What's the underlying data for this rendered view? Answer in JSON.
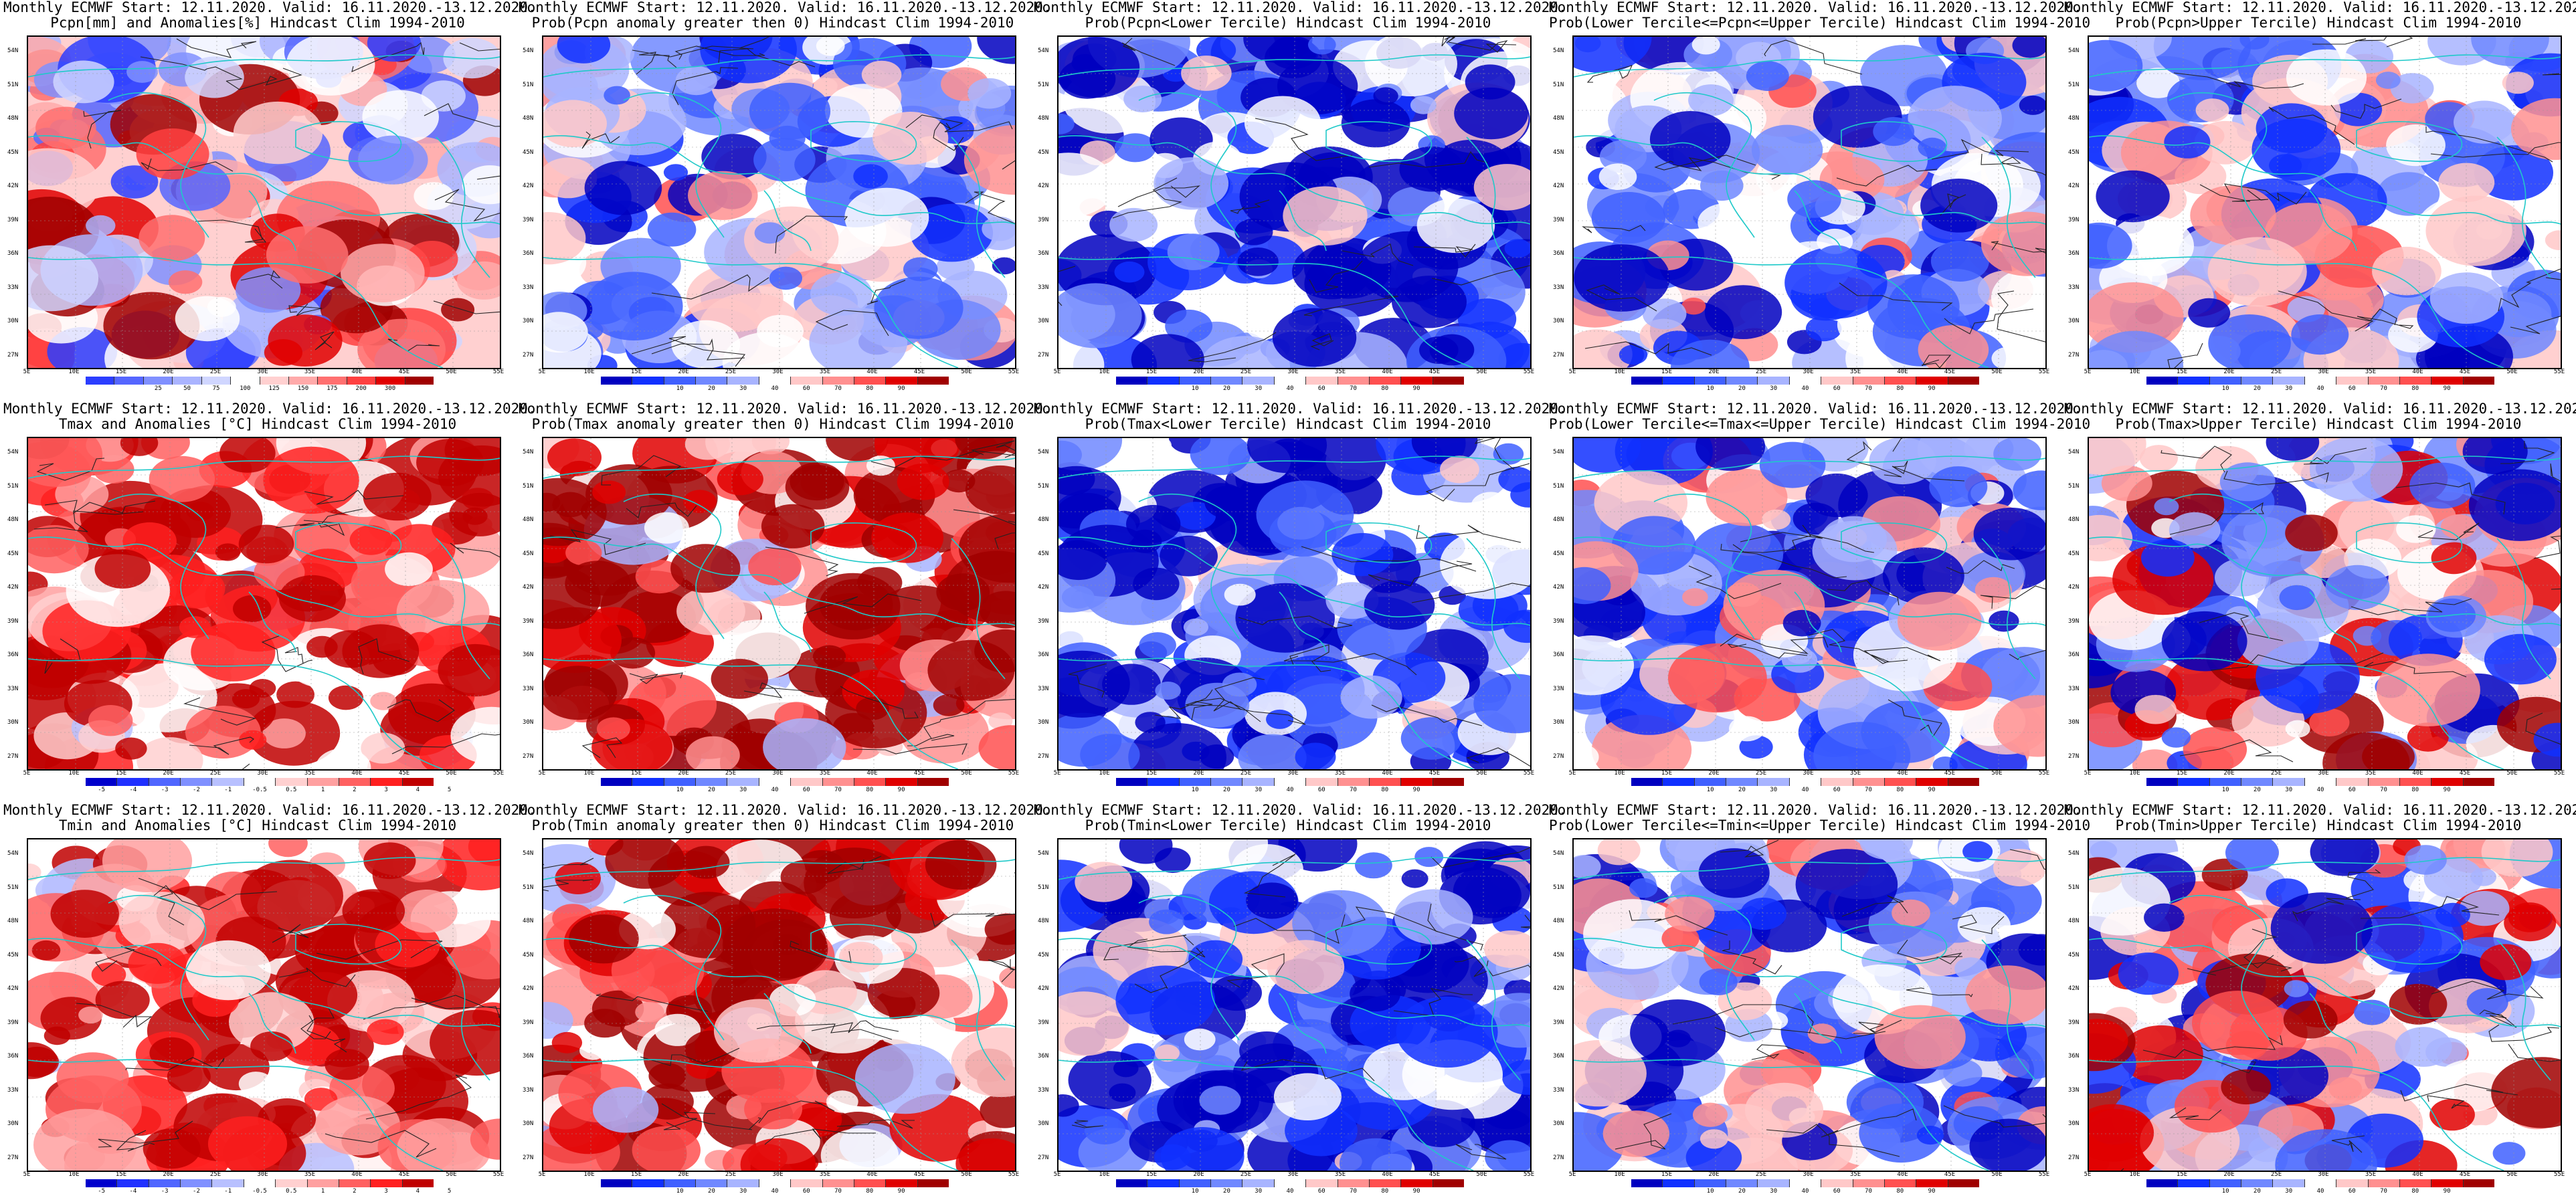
{
  "lat_labels": [
    "54N",
    "51N",
    "48N",
    "45N",
    "42N",
    "39N",
    "36N",
    "33N",
    "30N",
    "27N"
  ],
  "lon_labels": [
    "5E",
    "10E",
    "15E",
    "20E",
    "25E",
    "30E",
    "35E",
    "40E",
    "45E",
    "50E",
    "55E"
  ],
  "palettes": {
    "precip_anom": [
      "#2b3dff",
      "#5566ff",
      "#8090ff",
      "#aab4ff",
      "#d0d6ff",
      "#ffffff",
      "#ffd0d0",
      "#ffaaaa",
      "#ff7070",
      "#ff4040",
      "#e00000",
      "#a00000"
    ],
    "temp_anom": [
      "#0000cc",
      "#2030ff",
      "#5066ff",
      "#8090ff",
      "#b8c0ff",
      "#ffffff",
      "#ffd0d0",
      "#ffa0a0",
      "#ff6060",
      "#ff2020",
      "#c00000"
    ],
    "prob": [
      "#0000c0",
      "#1030ff",
      "#4060ff",
      "#7088ff",
      "#a8b4ff",
      "#ffffff",
      "#ffc8c8",
      "#ff9090",
      "#ff5050",
      "#e00000",
      "#a00000"
    ]
  },
  "panels": [
    {
      "title_line1": "Monthly ECMWF Start: 12.11.2020. Valid: 16.11.2020.-13.12.2020.",
      "title_line2": "Pcpn[mm] and Anomalies[%] Hindcast Clim 1994-2010",
      "field": "precip-anomaly",
      "palette": "precip_anom",
      "colorbar_labels": [
        "25",
        "50",
        "75",
        "100",
        "125",
        "150",
        "175",
        "200",
        "300"
      ]
    },
    {
      "title_line1": "Monthly ECMWF Start: 12.11.2020. Valid: 16.11.2020.-13.12.2020.",
      "title_line2": "Prob(Pcpn anomaly greater then 0) Hindcast Clim 1994-2010",
      "field": "precip-prob-positive",
      "palette": "prob",
      "colorbar_labels": [
        "10",
        "20",
        "30",
        "40",
        "60",
        "70",
        "80",
        "90"
      ]
    },
    {
      "title_line1": "Monthly ECMWF Start: 12.11.2020. Valid: 16.11.2020.-13.12.2020.",
      "title_line2": "Prob(Pcpn<Lower Tercile) Hindcast Clim 1994-2010",
      "field": "precip-prob-lower",
      "palette": "prob",
      "colorbar_labels": [
        "10",
        "20",
        "30",
        "40",
        "60",
        "70",
        "80",
        "90"
      ]
    },
    {
      "title_line1": "Monthly ECMWF Start: 12.11.2020. Valid: 16.11.2020.-13.12.2020.",
      "title_line2": "Prob(Lower Tercile<=Pcpn<=Upper Tercile) Hindcast Clim 1994-2010",
      "field": "precip-prob-middle",
      "palette": "prob",
      "colorbar_labels": [
        "10",
        "20",
        "30",
        "40",
        "60",
        "70",
        "80",
        "90"
      ]
    },
    {
      "title_line1": "Monthly ECMWF Start: 12.11.2020. Valid: 16.11.2020.-13.12.2020.",
      "title_line2": "Prob(Pcpn>Upper Tercile) Hindcast Clim 1994-2010",
      "field": "precip-prob-upper",
      "palette": "prob",
      "colorbar_labels": [
        "10",
        "20",
        "30",
        "40",
        "60",
        "70",
        "80",
        "90"
      ]
    },
    {
      "title_line1": "Monthly ECMWF Start: 12.11.2020. Valid: 16.11.2020.-13.12.2020.",
      "title_line2": "Tmax and Anomalies [°C] Hindcast Clim 1994-2010",
      "field": "tmax-anomaly",
      "palette": "temp_anom",
      "colorbar_labels": [
        "-5",
        "-4",
        "-3",
        "-2",
        "-1",
        "-0.5",
        "0.5",
        "1",
        "2",
        "3",
        "4",
        "5"
      ]
    },
    {
      "title_line1": "Monthly ECMWF Start: 12.11.2020. Valid: 16.11.2020.-13.12.2020.",
      "title_line2": "Prob(Tmax anomaly greater then 0) Hindcast Clim 1994-2010",
      "field": "tmax-prob-positive",
      "palette": "prob",
      "colorbar_labels": [
        "10",
        "20",
        "30",
        "40",
        "60",
        "70",
        "80",
        "90"
      ]
    },
    {
      "title_line1": "Monthly ECMWF Start: 12.11.2020. Valid: 16.11.2020.-13.12.2020.",
      "title_line2": "Prob(Tmax<Lower Tercile) Hindcast Clim 1994-2010",
      "field": "tmax-prob-lower",
      "palette": "prob",
      "colorbar_labels": [
        "10",
        "20",
        "30",
        "40",
        "60",
        "70",
        "80",
        "90"
      ]
    },
    {
      "title_line1": "Monthly ECMWF Start: 12.11.2020. Valid: 16.11.2020.-13.12.2020.",
      "title_line2": "Prob(Lower Tercile<=Tmax<=Upper Tercile) Hindcast Clim 1994-2010",
      "field": "tmax-prob-middle",
      "palette": "prob",
      "colorbar_labels": [
        "10",
        "20",
        "30",
        "40",
        "60",
        "70",
        "80",
        "90"
      ]
    },
    {
      "title_line1": "Monthly ECMWF Start: 12.11.2020. Valid: 16.11.2020.-13.12.2020.",
      "title_line2": "Prob(Tmax>Upper Tercile) Hindcast Clim 1994-2010",
      "field": "tmax-prob-upper",
      "palette": "prob",
      "colorbar_labels": [
        "10",
        "20",
        "30",
        "40",
        "60",
        "70",
        "80",
        "90"
      ]
    },
    {
      "title_line1": "Monthly ECMWF Start: 12.11.2020. Valid: 16.11.2020.-13.12.2020.",
      "title_line2": "Tmin and Anomalies [°C] Hindcast Clim 1994-2010",
      "field": "tmin-anomaly",
      "palette": "temp_anom",
      "colorbar_labels": [
        "-5",
        "-4",
        "-3",
        "-2",
        "-1",
        "-0.5",
        "0.5",
        "1",
        "2",
        "3",
        "4",
        "5"
      ]
    },
    {
      "title_line1": "Monthly ECMWF Start: 12.11.2020. Valid: 16.11.2020.-13.12.2020.",
      "title_line2": "Prob(Tmin anomaly greater then 0) Hindcast Clim 1994-2010",
      "field": "tmin-prob-positive",
      "palette": "prob",
      "colorbar_labels": [
        "10",
        "20",
        "30",
        "40",
        "60",
        "70",
        "80",
        "90"
      ]
    },
    {
      "title_line1": "Monthly ECMWF Start: 12.11.2020. Valid: 16.11.2020.-13.12.2020.",
      "title_line2": "Prob(Tmin<Lower Tercile) Hindcast Clim 1994-2010",
      "field": "tmin-prob-lower",
      "palette": "prob",
      "colorbar_labels": [
        "10",
        "20",
        "30",
        "40",
        "60",
        "70",
        "80",
        "90"
      ]
    },
    {
      "title_line1": "Monthly ECMWF Start: 12.11.2020. Valid: 16.11.2020.-13.12.2020.",
      "title_line2": "Prob(Lower Tercile<=Tmin<=Upper Tercile) Hindcast Clim 1994-2010",
      "field": "tmin-prob-middle",
      "palette": "prob",
      "colorbar_labels": [
        "10",
        "20",
        "30",
        "40",
        "60",
        "70",
        "80",
        "90"
      ]
    },
    {
      "title_line1": "Monthly ECMWF Start: 12.11.2020. Valid: 16.11.2020.-13.12.2020.",
      "title_line2": "Prob(Tmin>Upper Tercile) Hindcast Clim 1994-2010",
      "field": "tmin-prob-upper",
      "palette": "prob",
      "colorbar_labels": [
        "10",
        "20",
        "30",
        "40",
        "60",
        "70",
        "80",
        "90"
      ]
    }
  ]
}
